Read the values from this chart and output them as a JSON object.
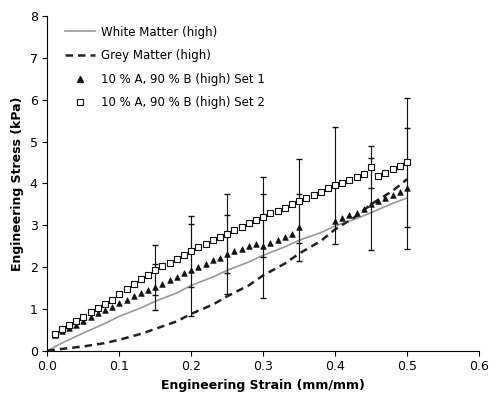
{
  "xlabel": "Engineering Strain (mm/mm)",
  "ylabel": "Engineering Stress (kPa)",
  "xlim": [
    0,
    0.6
  ],
  "ylim": [
    0,
    8
  ],
  "xticks": [
    0,
    0.1,
    0.2,
    0.3,
    0.4,
    0.5,
    0.6
  ],
  "yticks": [
    0,
    1,
    2,
    3,
    4,
    5,
    6,
    7,
    8
  ],
  "white_matter_x": [
    0.0,
    0.02,
    0.05,
    0.08,
    0.1,
    0.13,
    0.15,
    0.18,
    0.2,
    0.23,
    0.25,
    0.28,
    0.3,
    0.33,
    0.35,
    0.38,
    0.4,
    0.43,
    0.45,
    0.48,
    0.5
  ],
  "white_matter_y": [
    0.0,
    0.18,
    0.42,
    0.65,
    0.82,
    1.02,
    1.18,
    1.38,
    1.56,
    1.76,
    1.92,
    2.12,
    2.28,
    2.48,
    2.64,
    2.82,
    2.98,
    3.16,
    3.3,
    3.52,
    3.65
  ],
  "grey_matter_x": [
    0.0,
    0.02,
    0.05,
    0.08,
    0.1,
    0.13,
    0.15,
    0.18,
    0.2,
    0.23,
    0.25,
    0.28,
    0.3,
    0.33,
    0.35,
    0.38,
    0.4,
    0.43,
    0.45,
    0.48,
    0.5
  ],
  "grey_matter_y": [
    0.0,
    0.04,
    0.1,
    0.18,
    0.26,
    0.4,
    0.52,
    0.7,
    0.88,
    1.1,
    1.3,
    1.56,
    1.8,
    2.08,
    2.32,
    2.62,
    2.9,
    3.22,
    3.5,
    3.82,
    4.1
  ],
  "set1_x": [
    0.01,
    0.02,
    0.03,
    0.04,
    0.05,
    0.06,
    0.07,
    0.08,
    0.09,
    0.1,
    0.11,
    0.12,
    0.13,
    0.14,
    0.15,
    0.16,
    0.17,
    0.18,
    0.19,
    0.2,
    0.21,
    0.22,
    0.23,
    0.24,
    0.25,
    0.26,
    0.27,
    0.28,
    0.29,
    0.3,
    0.31,
    0.32,
    0.33,
    0.34,
    0.35,
    0.4,
    0.41,
    0.42,
    0.43,
    0.44,
    0.45,
    0.46,
    0.47,
    0.48,
    0.49,
    0.5
  ],
  "set1_y": [
    0.38,
    0.48,
    0.55,
    0.62,
    0.72,
    0.8,
    0.9,
    0.98,
    1.05,
    1.15,
    1.22,
    1.3,
    1.38,
    1.45,
    1.52,
    1.6,
    1.68,
    1.76,
    1.85,
    1.92,
    2.0,
    2.08,
    2.16,
    2.22,
    2.3,
    2.38,
    2.44,
    2.5,
    2.56,
    2.5,
    2.58,
    2.65,
    2.72,
    2.8,
    2.95,
    3.1,
    3.18,
    3.25,
    3.3,
    3.38,
    3.5,
    3.58,
    3.65,
    3.72,
    3.8,
    3.88
  ],
  "set1_yerr": [
    0.0,
    0.0,
    0.0,
    0.0,
    0.0,
    0.0,
    0.0,
    0.0,
    0.0,
    0.0,
    0.0,
    0.0,
    0.0,
    0.0,
    0.55,
    0.0,
    0.0,
    0.0,
    0.0,
    1.1,
    0.0,
    0.0,
    0.0,
    0.0,
    0.95,
    0.0,
    0.0,
    0.0,
    0.0,
    1.25,
    0.0,
    0.0,
    0.0,
    0.0,
    0.8,
    0.0,
    0.0,
    0.0,
    0.0,
    0.0,
    1.1,
    0.0,
    0.0,
    0.0,
    0.0,
    1.45
  ],
  "set2_x": [
    0.01,
    0.02,
    0.03,
    0.04,
    0.05,
    0.06,
    0.07,
    0.08,
    0.09,
    0.1,
    0.11,
    0.12,
    0.13,
    0.14,
    0.15,
    0.16,
    0.17,
    0.18,
    0.19,
    0.2,
    0.21,
    0.22,
    0.23,
    0.24,
    0.25,
    0.26,
    0.27,
    0.28,
    0.29,
    0.3,
    0.31,
    0.32,
    0.33,
    0.34,
    0.35,
    0.36,
    0.37,
    0.38,
    0.39,
    0.4,
    0.41,
    0.42,
    0.43,
    0.44,
    0.45,
    0.46,
    0.47,
    0.48,
    0.49,
    0.5
  ],
  "set2_y": [
    0.4,
    0.52,
    0.62,
    0.7,
    0.8,
    0.92,
    1.02,
    1.12,
    1.22,
    1.35,
    1.48,
    1.6,
    1.72,
    1.82,
    1.92,
    2.02,
    2.1,
    2.18,
    2.28,
    2.38,
    2.48,
    2.56,
    2.64,
    2.72,
    2.8,
    2.88,
    2.96,
    3.05,
    3.12,
    3.2,
    3.28,
    3.35,
    3.42,
    3.5,
    3.58,
    3.65,
    3.72,
    3.8,
    3.88,
    3.95,
    4.0,
    4.08,
    4.15,
    4.22,
    4.4,
    4.18,
    4.25,
    4.35,
    4.42,
    4.5
  ],
  "set2_yerr": [
    0.0,
    0.0,
    0.0,
    0.0,
    0.0,
    0.0,
    0.0,
    0.0,
    0.0,
    0.0,
    0.0,
    0.0,
    0.0,
    0.0,
    0.6,
    0.0,
    0.0,
    0.0,
    0.0,
    0.85,
    0.0,
    0.0,
    0.0,
    0.0,
    0.95,
    0.0,
    0.0,
    0.0,
    0.0,
    0.95,
    0.0,
    0.0,
    0.0,
    0.0,
    1.0,
    0.0,
    0.0,
    0.0,
    0.0,
    1.4,
    0.0,
    0.0,
    0.0,
    0.0,
    0.5,
    0.0,
    0.0,
    0.0,
    0.0,
    1.55
  ],
  "line_color_wm": "#999999",
  "line_color_gm": "#222222",
  "scatter_color": "#111111",
  "font_size": 9,
  "legend_fontsize": 8.5
}
